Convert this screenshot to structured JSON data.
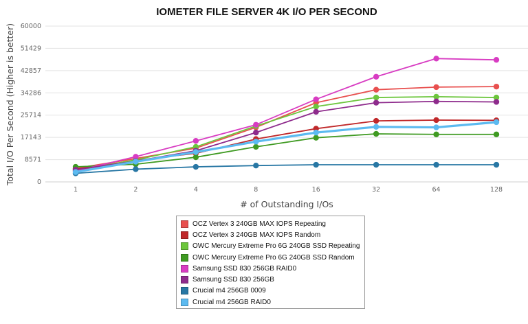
{
  "chart_data": {
    "type": "line",
    "title": "IOMETER FILE SERVER 4K I/O PER SECOND",
    "xlabel": "# of Outstanding I/Os",
    "ylabel": "Total I/O Per Second (Higher is better)",
    "categories": [
      "1",
      "2",
      "4",
      "8",
      "16",
      "32",
      "64",
      "128"
    ],
    "yticks": [
      "0",
      "8571",
      "17143",
      "25714",
      "34286",
      "42857",
      "51429",
      "60000"
    ],
    "ylim": [
      0,
      60000
    ],
    "grid": "horizontal",
    "legend_position": "bottom-center",
    "series": [
      {
        "name": "OCZ Vertex 3 240GB MAX IOPS Repeating",
        "color": "#e8504f",
        "values": [
          5200,
          9000,
          13000,
          21000,
          30500,
          35500,
          36500,
          36700
        ]
      },
      {
        "name": "OCZ Vertex 3 240GB MAX IOPS Random",
        "color": "#c0282a",
        "values": [
          4900,
          8300,
          11000,
          16500,
          20500,
          23500,
          23800,
          23700
        ]
      },
      {
        "name": "OWC Mercury Extreme Pro 6G 240GB SSD Repeating",
        "color": "#6cc63c",
        "values": [
          4400,
          8500,
          13500,
          21500,
          29000,
          32500,
          32800,
          32500
        ]
      },
      {
        "name": "OWC Mercury Extreme Pro 6G 240GB SSD Random",
        "color": "#3f9a22",
        "values": [
          5800,
          6800,
          9500,
          13500,
          17000,
          18500,
          18300,
          18300
        ]
      },
      {
        "name": "Samsung SSD 830 256GB RAID0",
        "color": "#d83cc2",
        "values": [
          4200,
          9700,
          15800,
          22000,
          31800,
          40500,
          47500,
          47000
        ]
      },
      {
        "name": "Samsung SSD 830 256GB",
        "color": "#8e2b8c",
        "values": [
          4700,
          8000,
          12000,
          19000,
          27000,
          30500,
          31000,
          30800
        ]
      },
      {
        "name": "Crucial m4 256GB 0009",
        "color": "#2877a4",
        "values": [
          3300,
          4900,
          5800,
          6300,
          6600,
          6600,
          6600,
          6600
        ]
      },
      {
        "name": "Crucial m4 256GB RAID0",
        "color": "#5cbaf0",
        "values": [
          3800,
          7800,
          11500,
          15500,
          19000,
          21200,
          21000,
          23000
        ]
      }
    ]
  }
}
